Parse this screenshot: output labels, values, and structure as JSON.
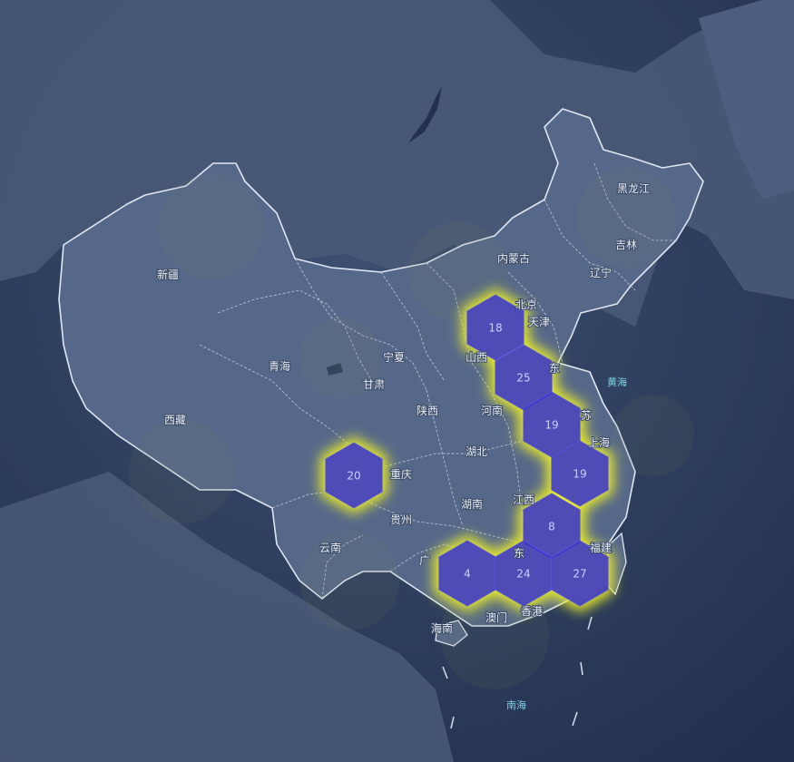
{
  "map": {
    "colors": {
      "background": "#2b3d5c",
      "land": "#4f5f7f",
      "border": "#dfe6f2",
      "hex_fill": "#3b35c9",
      "hex_glow": "#e6ea2b",
      "label": "#e8ecf3",
      "sea_label": "#7fd3e8"
    },
    "province_labels": [
      {
        "id": "xinjiang",
        "text": "新疆"
      },
      {
        "id": "xizang",
        "text": "西藏"
      },
      {
        "id": "qinghai",
        "text": "青海"
      },
      {
        "id": "gansu",
        "text": "甘肃"
      },
      {
        "id": "ningxia",
        "text": "宁夏"
      },
      {
        "id": "shaanxi",
        "text": "陕西"
      },
      {
        "id": "neimenggu",
        "text": "内蒙古"
      },
      {
        "id": "heilongjiang",
        "text": "黑龙江"
      },
      {
        "id": "jilin",
        "text": "吉林"
      },
      {
        "id": "liaoning",
        "text": "辽宁"
      },
      {
        "id": "beijing",
        "text": "北京"
      },
      {
        "id": "tianjin",
        "text": "天津"
      },
      {
        "id": "shanxi",
        "text": "山西"
      },
      {
        "id": "henan",
        "text": "河南"
      },
      {
        "id": "hubei",
        "text": "湖北"
      },
      {
        "id": "hunan",
        "text": "湖南"
      },
      {
        "id": "jiangxi",
        "text": "江西"
      },
      {
        "id": "chongqing",
        "text": "重庆"
      },
      {
        "id": "guizhou",
        "text": "贵州"
      },
      {
        "id": "yunnan",
        "text": "云南"
      },
      {
        "id": "guangxi",
        "text": "广"
      },
      {
        "id": "guangdong",
        "text": "东"
      },
      {
        "id": "hainan",
        "text": "海南"
      },
      {
        "id": "aomen",
        "text": "澳门"
      },
      {
        "id": "xianggang",
        "text": "香港"
      },
      {
        "id": "shandong",
        "text": "东"
      },
      {
        "id": "jiangsu",
        "text": "苏"
      },
      {
        "id": "shanghai",
        "text": "上海"
      },
      {
        "id": "fujian",
        "text": "福建"
      }
    ],
    "sea_labels": [
      {
        "id": "huanghai",
        "text": "黄海"
      },
      {
        "id": "nanhai",
        "text": "南海"
      }
    ],
    "hexbins": [
      {
        "id": "hex-beijing",
        "value": 18
      },
      {
        "id": "hex-shandong",
        "value": 25
      },
      {
        "id": "hex-henan",
        "value": 19
      },
      {
        "id": "hex-jiangsu",
        "value": 19
      },
      {
        "id": "hex-jiangxi",
        "value": 8
      },
      {
        "id": "hex-guangxi",
        "value": 4
      },
      {
        "id": "hex-guangdong",
        "value": 24
      },
      {
        "id": "hex-fujian",
        "value": 27
      },
      {
        "id": "hex-sichuan",
        "value": 20
      }
    ]
  }
}
